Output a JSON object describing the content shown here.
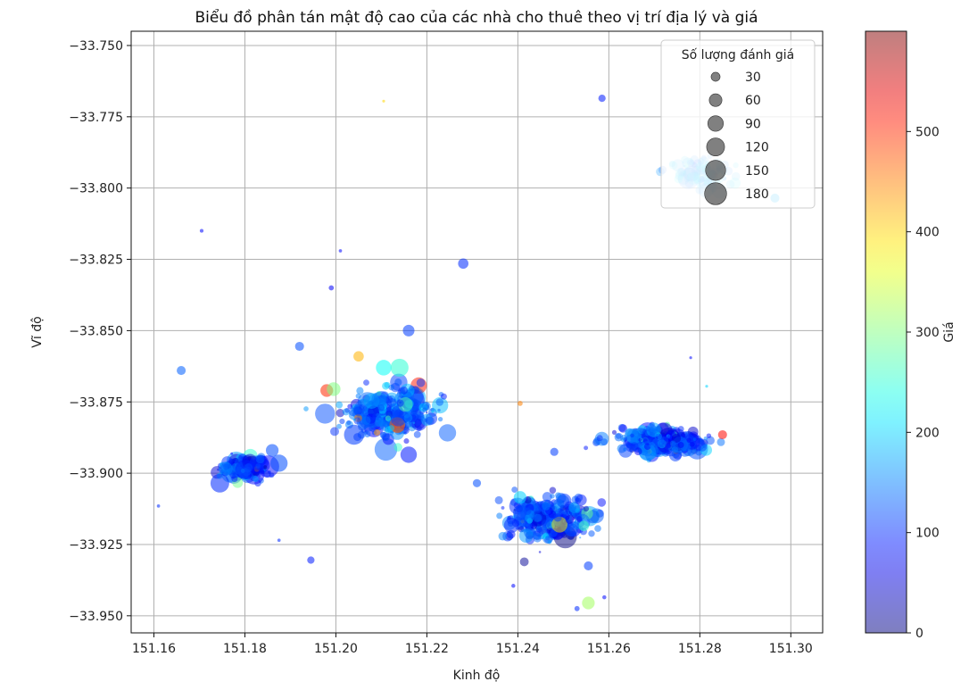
{
  "chart_data": {
    "type": "scatter",
    "title": "Biểu đồ phân tán mật độ cao của các nhà cho thuê theo vị trí địa lý và giá",
    "xlabel": "Kinh độ",
    "ylabel": "Vĩ độ",
    "xlim": [
      151.155,
      151.307
    ],
    "ylim": [
      -33.956,
      -33.745
    ],
    "xticks": [
      151.16,
      151.18,
      151.2,
      151.22,
      151.24,
      151.26,
      151.28,
      151.3
    ],
    "xtick_labels": [
      "151.16",
      "151.18",
      "151.20",
      "151.22",
      "151.24",
      "151.26",
      "151.28",
      "151.30"
    ],
    "yticks": [
      -33.75,
      -33.775,
      -33.8,
      -33.825,
      -33.85,
      -33.875,
      -33.9,
      -33.925,
      -33.95
    ],
    "ytick_labels": [
      "−33.750",
      "−33.775",
      "−33.800",
      "−33.825",
      "−33.850",
      "−33.875",
      "−33.900",
      "−33.925",
      "−33.950"
    ],
    "grid": true,
    "colorbar": {
      "label": "Giá",
      "range": [
        0,
        600
      ],
      "ticks": [
        0,
        100,
        200,
        300,
        400,
        500
      ],
      "tick_labels": [
        "0",
        "100",
        "200",
        "300",
        "400",
        "500"
      ],
      "colormap": "jet"
    },
    "legend": {
      "title": "Số lượng đánh giá",
      "placement": "top-right",
      "sizes": [
        30,
        60,
        90,
        120,
        150,
        180
      ],
      "labels": [
        "30",
        "60",
        "90",
        "120",
        "150",
        "180"
      ]
    },
    "clusters": [
      {
        "center_lon": 151.18,
        "center_lat": -33.898,
        "spread_lon": 0.005,
        "spread_lat": 0.004,
        "price_mean": 115
      },
      {
        "center_lon": 151.212,
        "center_lat": -33.879,
        "spread_lon": 0.009,
        "spread_lat": 0.007,
        "price_mean": 125
      },
      {
        "center_lon": 151.247,
        "center_lat": -33.916,
        "spread_lon": 0.008,
        "spread_lat": 0.007,
        "price_mean": 110
      },
      {
        "center_lon": 151.272,
        "center_lat": -33.889,
        "spread_lon": 0.008,
        "spread_lat": 0.004,
        "price_mean": 110
      },
      {
        "center_lon": 151.281,
        "center_lat": -33.795,
        "spread_lon": 0.006,
        "spread_lat": 0.005,
        "price_mean": 170
      }
    ],
    "points": [
      {
        "lon": 151.2585,
        "lat": -33.7685,
        "reviews": 20,
        "price": 90
      },
      {
        "lon": 151.1705,
        "lat": -33.815,
        "reviews": 5,
        "price": 80
      },
      {
        "lon": 151.228,
        "lat": -33.8265,
        "reviews": 40,
        "price": 100
      },
      {
        "lon": 151.201,
        "lat": -33.822,
        "reviews": 4,
        "price": 80
      },
      {
        "lon": 151.199,
        "lat": -33.835,
        "reviews": 10,
        "price": 70
      },
      {
        "lon": 151.216,
        "lat": -33.85,
        "reviews": 50,
        "price": 110
      },
      {
        "lon": 151.192,
        "lat": -33.8555,
        "reviews": 30,
        "price": 120
      },
      {
        "lon": 151.166,
        "lat": -33.864,
        "reviews": 30,
        "price": 130
      },
      {
        "lon": 151.205,
        "lat": -33.859,
        "reviews": 40,
        "price": 420
      },
      {
        "lon": 151.2105,
        "lat": -33.863,
        "reviews": 90,
        "price": 230
      },
      {
        "lon": 151.214,
        "lat": -33.863,
        "reviews": 120,
        "price": 250
      },
      {
        "lon": 151.198,
        "lat": -33.871,
        "reviews": 60,
        "price": 500
      },
      {
        "lon": 151.1995,
        "lat": -33.8705,
        "reviews": 70,
        "price": 300
      },
      {
        "lon": 151.204,
        "lat": -33.8865,
        "reviews": 150,
        "price": 110
      },
      {
        "lon": 151.216,
        "lat": -33.8935,
        "reviews": 100,
        "price": 90
      },
      {
        "lon": 151.1745,
        "lat": -33.9035,
        "reviews": 130,
        "price": 100
      },
      {
        "lon": 151.1875,
        "lat": -33.8965,
        "reviews": 110,
        "price": 120
      },
      {
        "lon": 151.186,
        "lat": -33.892,
        "reviews": 60,
        "price": 120
      },
      {
        "lon": 151.161,
        "lat": -33.9115,
        "reviews": 4,
        "price": 100
      },
      {
        "lon": 151.1945,
        "lat": -33.9305,
        "reviews": 20,
        "price": 90
      },
      {
        "lon": 151.1875,
        "lat": -33.9235,
        "reviews": 4,
        "price": 100
      },
      {
        "lon": 151.239,
        "lat": -33.9395,
        "reviews": 6,
        "price": 80
      },
      {
        "lon": 151.2555,
        "lat": -33.9455,
        "reviews": 60,
        "price": 320
      },
      {
        "lon": 151.2555,
        "lat": -33.9325,
        "reviews": 30,
        "price": 110
      },
      {
        "lon": 151.253,
        "lat": -33.9475,
        "reviews": 10,
        "price": 100
      },
      {
        "lon": 151.259,
        "lat": -33.9435,
        "reviews": 6,
        "price": 80
      },
      {
        "lon": 151.248,
        "lat": -33.8925,
        "reviews": 25,
        "price": 110
      },
      {
        "lon": 151.2405,
        "lat": -33.8755,
        "reviews": 10,
        "price": 450
      },
      {
        "lon": 151.285,
        "lat": -33.8865,
        "reviews": 30,
        "price": 520
      },
      {
        "lon": 151.278,
        "lat": -33.8595,
        "reviews": 3,
        "price": 80
      },
      {
        "lon": 151.2815,
        "lat": -33.8695,
        "reviews": 3,
        "price": 200
      },
      {
        "lon": 151.2105,
        "lat": -33.7695,
        "reviews": 3,
        "price": 400
      },
      {
        "lon": 151.2965,
        "lat": -33.8035,
        "reviews": 30,
        "price": 180
      },
      {
        "lon": 151.231,
        "lat": -33.9035,
        "reviews": 25,
        "price": 120
      },
      {
        "lon": 151.2405,
        "lat": -33.9085,
        "reviews": 60,
        "price": 200
      },
      {
        "lon": 151.2545,
        "lat": -33.9185,
        "reviews": 40,
        "price": 260
      }
    ]
  }
}
